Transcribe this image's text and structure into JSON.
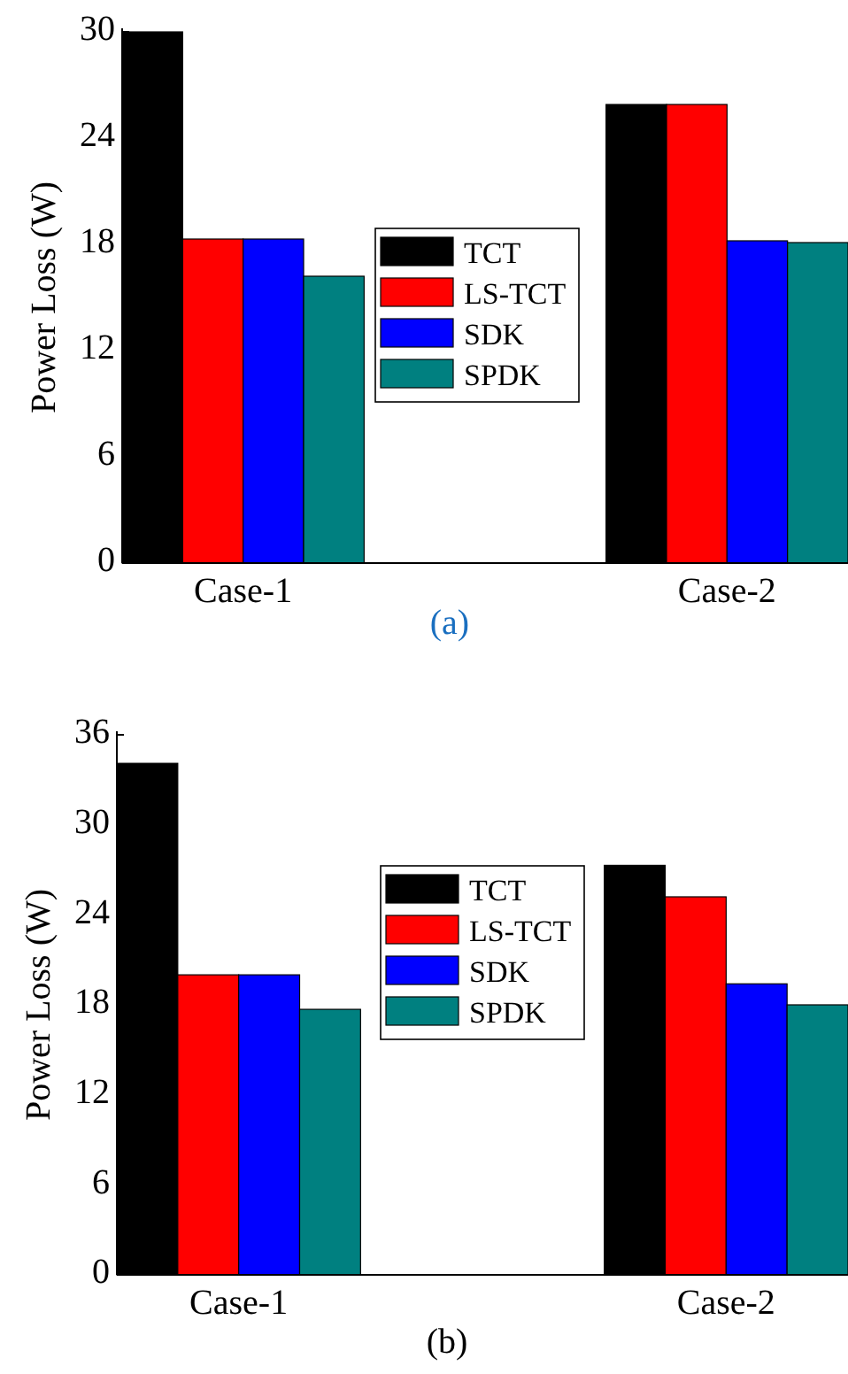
{
  "chart_data": [
    {
      "type": "bar",
      "ylabel": "Power Loss (W)",
      "categories": [
        "Case-1",
        "Case-2"
      ],
      "ylim": [
        0,
        30
      ],
      "yticks": [
        0,
        6,
        12,
        18,
        24,
        30
      ],
      "legend": "center",
      "annotations": [
        "(a)"
      ],
      "series": [
        {
          "name": "TCT",
          "color": "#000000",
          "values": [
            30,
            25.9
          ]
        },
        {
          "name": "LS-TCT",
          "color": "#ff0000",
          "values": [
            18.3,
            25.9
          ]
        },
        {
          "name": "SDK",
          "color": "#0000ff",
          "values": [
            18.3,
            18.2
          ]
        },
        {
          "name": "SPDK",
          "color": "#008080",
          "values": [
            16.2,
            18.1
          ]
        }
      ]
    },
    {
      "type": "bar",
      "ylabel": "Power Loss (W)",
      "categories": [
        "Case-1",
        "Case-2"
      ],
      "ylim": [
        0,
        36
      ],
      "yticks": [
        0,
        6,
        12,
        18,
        24,
        30,
        36
      ],
      "legend": "top",
      "annotations": [
        "(b)"
      ],
      "series": [
        {
          "name": "TCT",
          "color": "#000000",
          "values": [
            34.1,
            27.3
          ]
        },
        {
          "name": "LS-TCT",
          "color": "#ff0000",
          "values": [
            20,
            25.2
          ]
        },
        {
          "name": "SDK",
          "color": "#0000ff",
          "values": [
            20,
            19.4
          ]
        },
        {
          "name": "SPDK",
          "color": "#008080",
          "values": [
            17.7,
            18
          ]
        }
      ]
    }
  ]
}
